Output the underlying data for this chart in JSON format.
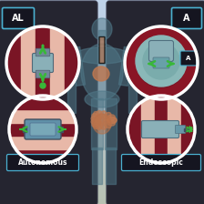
{
  "bg_top": "#7aaec8",
  "bg_mid": "#c8cec0",
  "bg_bottom": "#b8c4b0",
  "panel_color": "#252530",
  "panel_edge": "#353545",
  "label_border": "#4ab0d0",
  "label_bg": "#151520",
  "title_left": "AL",
  "title_right": "A",
  "label_autonomous": "Autonomous",
  "label_endoscopic": "Endoscopic",
  "body_color": "#507888",
  "body_alpha": 0.55,
  "intestine_color": "#c0845a",
  "tissue_pink": "#e8b8a8",
  "tissue_dark_red": "#7a1525",
  "tissue_mid": "#c09080",
  "device_gray": "#90b0b8",
  "device_dark": "#607888",
  "device_green": "#38b838",
  "figsize": [
    2.24,
    2.24
  ],
  "dpi": 100
}
